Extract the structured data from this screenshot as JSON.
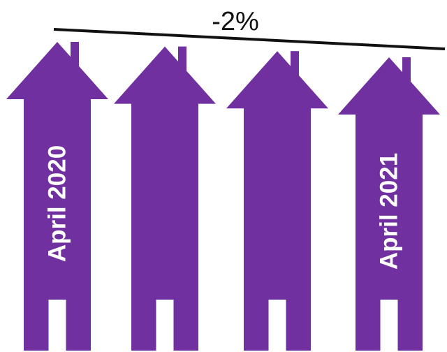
{
  "colors": {
    "house": "#7030a0",
    "door": "#ffffff",
    "label": "#ffffff",
    "trend_line": "#111111"
  },
  "chart_data": {
    "type": "bar",
    "title": "",
    "annotation": "-2%",
    "categories": [
      "April 2020",
      "",
      "",
      "April 2021"
    ],
    "values": [
      100,
      99.4,
      98.8,
      98
    ],
    "trend": {
      "from": 100,
      "to": 98,
      "change_label": "-2%"
    },
    "icon": "house",
    "ylim": [
      0,
      100
    ],
    "grid": false
  }
}
